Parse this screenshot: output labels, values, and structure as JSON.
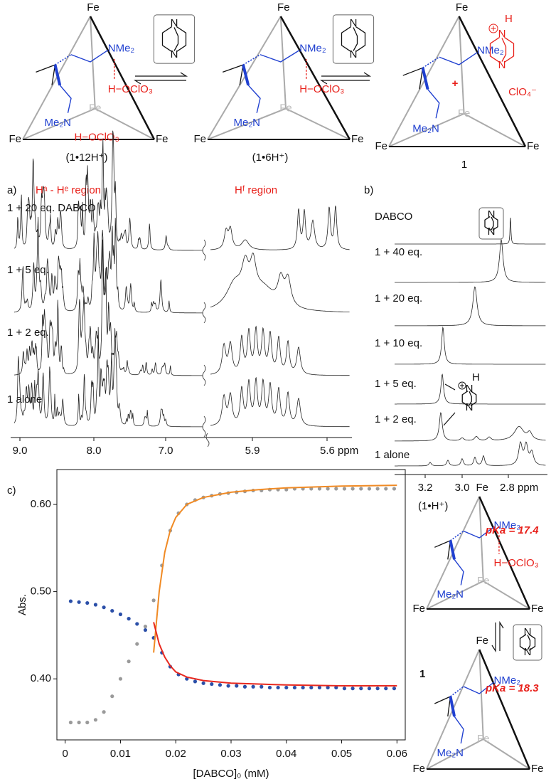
{
  "scheme": {
    "fe": "Fe",
    "nme2": "NMe₂",
    "me2n": "Me₂N",
    "hoclo3": "H−OClO₃",
    "n": "N",
    "h": "H",
    "plus": "+",
    "clo4": "ClO₄⁻",
    "labels": [
      "(1•12H⁺)",
      "(1•6H⁺)",
      "1"
    ]
  },
  "panel_a": {
    "label": "a)",
    "regions": [
      "Hᵃ - Hᵉ region",
      "Hᶠ region"
    ],
    "traces": [
      "1 + 20 eq. DABCO",
      "1 + 5 eq.",
      "1 + 2 eq.",
      "1 alone"
    ],
    "ticks": [
      "9.0",
      "8.0",
      "7.0",
      "5.9",
      "5.6 ppm"
    ]
  },
  "panel_b": {
    "label": "b)",
    "traces": [
      "DABCO",
      "1 + 40 eq.",
      "1 + 20 eq.",
      "1 + 10 eq.",
      "1 + 5 eq.",
      "1 + 2 eq.",
      "1 alone"
    ],
    "ticks": [
      "3.2",
      "3.0",
      "2.8 ppm"
    ]
  },
  "panel_c_scheme": {
    "species": [
      "(1•H⁺)",
      "1"
    ],
    "pka": [
      "pKa = 17.4",
      "pKa = 18.3"
    ]
  },
  "chart_data": {
    "type": "scatter",
    "panel_label": "c)",
    "xlabel": "[DABCO]₀ (mM)",
    "ylabel": "Abs.",
    "xlim": [
      -0.0015,
      0.0615
    ],
    "ylim": [
      0.33,
      0.64
    ],
    "xticks": [
      0,
      0.01,
      0.02,
      0.03,
      0.04,
      0.05,
      0.06
    ],
    "yticks": [
      {
        "value": 0.4,
        "label": "0.40"
      },
      {
        "value": 0.5,
        "label": "0.50"
      },
      {
        "value": 0.6,
        "label": "0.60"
      }
    ],
    "series": [
      {
        "type": "scatter",
        "color": "#9a9a9a",
        "x": [
          0.001,
          0.0025,
          0.004,
          0.0055,
          0.007,
          0.0085,
          0.01,
          0.0115,
          0.013,
          0.0145,
          0.016,
          0.0175,
          0.019,
          0.0205,
          0.022,
          0.0235,
          0.025,
          0.0265,
          0.028,
          0.0295,
          0.031,
          0.0325,
          0.034,
          0.0355,
          0.037,
          0.0385,
          0.04,
          0.0415,
          0.043,
          0.0445,
          0.046,
          0.0475,
          0.049,
          0.0505,
          0.052,
          0.0535,
          0.055,
          0.0565,
          0.058,
          0.0595
        ],
        "values": [
          0.35,
          0.35,
          0.35,
          0.353,
          0.362,
          0.38,
          0.4,
          0.42,
          0.44,
          0.46,
          0.49,
          0.53,
          0.57,
          0.59,
          0.6,
          0.605,
          0.608,
          0.61,
          0.612,
          0.613,
          0.614,
          0.615,
          0.616,
          0.616,
          0.617,
          0.617,
          0.617,
          0.618,
          0.618,
          0.618,
          0.618,
          0.618,
          0.618,
          0.618,
          0.618,
          0.618,
          0.618,
          0.618,
          0.618,
          0.618
        ]
      },
      {
        "type": "scatter",
        "color": "#2b4fa8",
        "x": [
          0.001,
          0.0025,
          0.004,
          0.0055,
          0.007,
          0.0085,
          0.01,
          0.0115,
          0.013,
          0.0145,
          0.016,
          0.0175,
          0.019,
          0.0205,
          0.022,
          0.0235,
          0.025,
          0.0265,
          0.028,
          0.0295,
          0.031,
          0.0325,
          0.034,
          0.0355,
          0.037,
          0.0385,
          0.04,
          0.0415,
          0.043,
          0.0445,
          0.046,
          0.0475,
          0.049,
          0.0505,
          0.052,
          0.0535,
          0.055,
          0.0565,
          0.058,
          0.0595
        ],
        "values": [
          0.489,
          0.488,
          0.487,
          0.485,
          0.482,
          0.478,
          0.474,
          0.469,
          0.463,
          0.456,
          0.447,
          0.43,
          0.414,
          0.405,
          0.4,
          0.397,
          0.395,
          0.394,
          0.393,
          0.392,
          0.392,
          0.391,
          0.391,
          0.391,
          0.39,
          0.39,
          0.39,
          0.39,
          0.39,
          0.39,
          0.39,
          0.39,
          0.39,
          0.389,
          0.389,
          0.389,
          0.389,
          0.389,
          0.389,
          0.389
        ]
      },
      {
        "type": "line",
        "color": "#f08a24",
        "x": [
          0.016,
          0.017,
          0.018,
          0.019,
          0.02,
          0.022,
          0.025,
          0.03,
          0.035,
          0.04,
          0.05,
          0.06
        ],
        "values": [
          0.43,
          0.5,
          0.545,
          0.57,
          0.585,
          0.6,
          0.608,
          0.614,
          0.617,
          0.619,
          0.621,
          0.622
        ]
      },
      {
        "type": "line",
        "color": "#e8281e",
        "x": [
          0.016,
          0.017,
          0.018,
          0.019,
          0.02,
          0.022,
          0.025,
          0.03,
          0.035,
          0.04,
          0.05,
          0.06
        ],
        "values": [
          0.465,
          0.44,
          0.425,
          0.415,
          0.408,
          0.402,
          0.398,
          0.395,
          0.394,
          0.393,
          0.392,
          0.392
        ]
      }
    ]
  }
}
